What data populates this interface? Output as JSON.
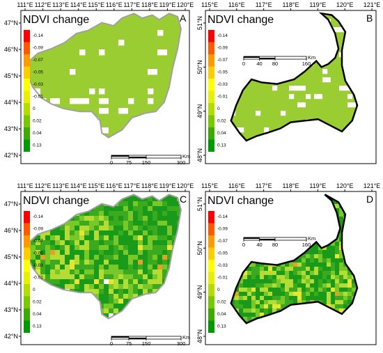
{
  "panels": [
    {
      "id": "A",
      "label": "A",
      "title": "NDVI change",
      "lon_labels": [
        "111°E",
        "112°E",
        "113°E",
        "114°E",
        "115°E",
        "116°E",
        "117°E",
        "118°E",
        "119°E",
        "120°E"
      ],
      "lat_labels": [
        "47°N",
        "46°N",
        "45°N",
        "44°N",
        "43°N",
        "42°N"
      ],
      "scale_labels": [
        "0",
        "75",
        "150",
        "300"
      ],
      "scale_unit": "Km",
      "legend_values": [
        "-0.14",
        "-0.09",
        "-0.07",
        "-0.05",
        "-0.03",
        "-0.01",
        "0",
        "0.02",
        "0.04",
        "0.13"
      ],
      "fill": "uniform"
    },
    {
      "id": "B",
      "label": "B",
      "title": "NDVI change",
      "lon_labels": [
        "115°E",
        "116°E",
        "117°E",
        "118°E",
        "119°E",
        "120°E",
        "121°E"
      ],
      "lat_labels": [
        "51°N",
        "50°N",
        "49°N",
        "48°N"
      ],
      "scale_labels": [
        "0",
        "40",
        "80",
        "160"
      ],
      "scale_unit": "Km",
      "legend_values": [
        "-0.14",
        "-0.09",
        "-0.07",
        "-0.05",
        "-0.03",
        "-0.01",
        "0",
        "0.02",
        "0.04",
        "0.13"
      ],
      "fill": "uniform"
    },
    {
      "id": "C",
      "label": "C",
      "title": "NDVI change",
      "lon_labels": [
        "111°E",
        "112°E",
        "113°E",
        "114°E",
        "115°E",
        "116°E",
        "117°E",
        "118°E",
        "119°E",
        "120°E"
      ],
      "lat_labels": [
        "47°N",
        "46°N",
        "45°N",
        "44°N",
        "43°N",
        "42°N"
      ],
      "scale_labels": [
        "0",
        "75",
        "150",
        "300"
      ],
      "scale_unit": "Km",
      "legend_values": [
        "-0.14",
        "-0.09",
        "-0.07",
        "-0.05",
        "-0.03",
        "-0.01",
        "0",
        "0.02",
        "0.04",
        "0.13"
      ],
      "fill": "mosaic"
    },
    {
      "id": "D",
      "label": "D",
      "title": "NDVI change",
      "lon_labels": [
        "115°E",
        "116°E",
        "117°E",
        "118°E",
        "119°E",
        "120°E",
        "121°E"
      ],
      "lat_labels": [
        "51°N",
        "50°N",
        "49°N",
        "48°N"
      ],
      "scale_labels": [
        "0",
        "40",
        "80",
        "160"
      ],
      "scale_unit": "Km",
      "legend_values": [
        "-0.14",
        "-0.09",
        "-0.07",
        "-0.05",
        "-0.03",
        "-0.01",
        "0",
        "0.02",
        "0.04",
        "0.13"
      ],
      "fill": "mosaic"
    }
  ],
  "legend_colors": [
    "#ff0000",
    "#ff5a00",
    "#ff9900",
    "#ffcc00",
    "#ffff00",
    "#e6f000",
    "#b4dc00",
    "#78c800",
    "#3caa00",
    "#009a00"
  ],
  "colors": {
    "uniform_green": "#9acd32",
    "dark_green": "#1a9a1a",
    "mid_green": "#3caa1e",
    "light_green": "#78c828",
    "yellow_green": "#b4dc32",
    "yellow": "#e6e632",
    "orange": "#e6a028",
    "white_patch": "#ffffff",
    "boundary_gray": "#a0a0a0",
    "boundary_black": "#000000"
  }
}
